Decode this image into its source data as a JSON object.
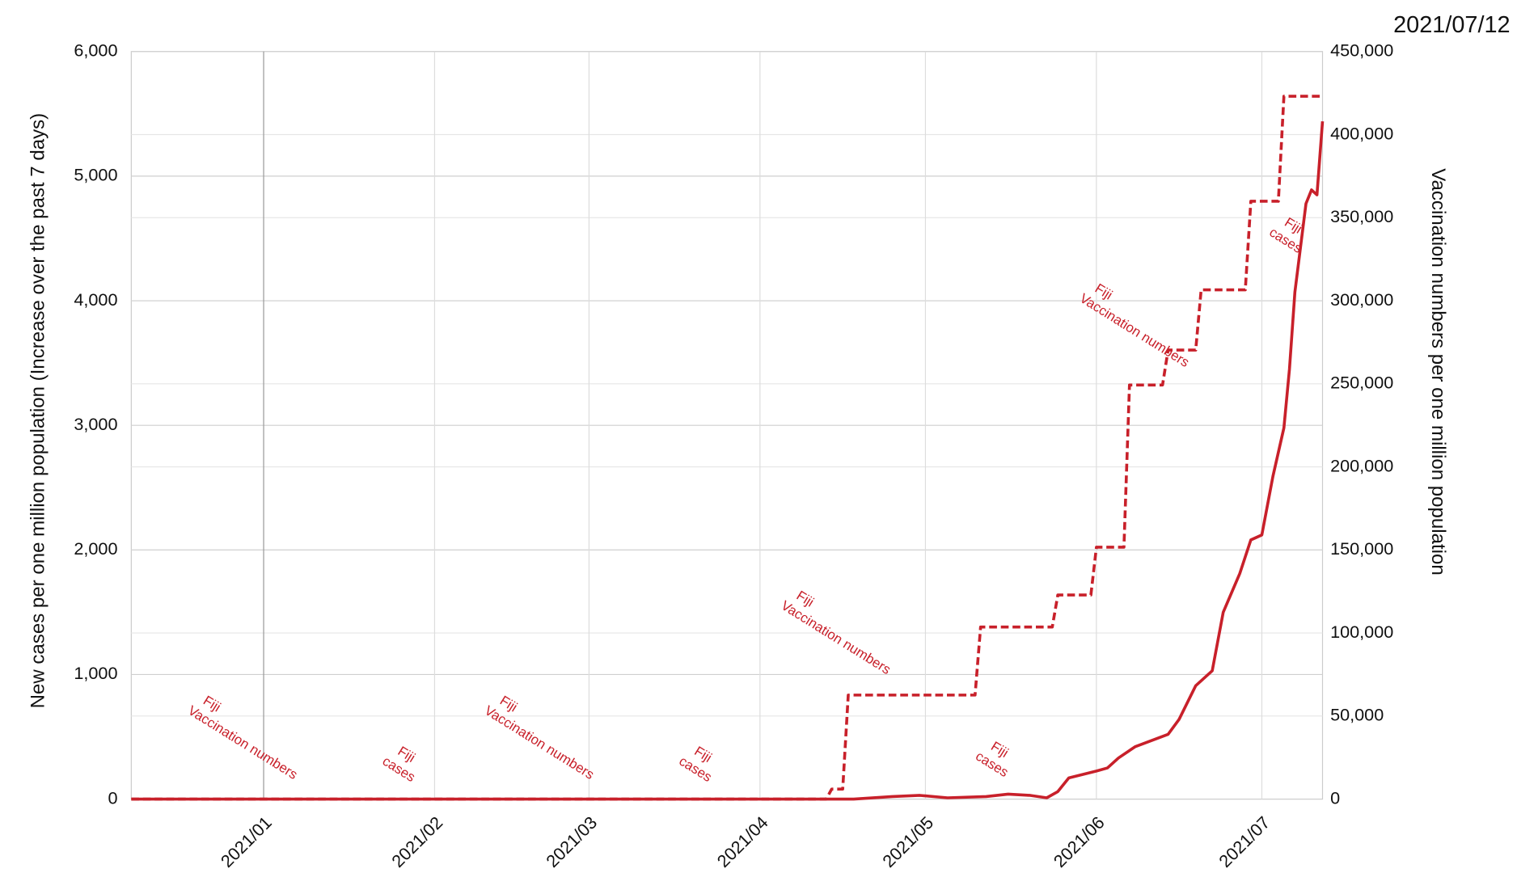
{
  "chart_data": {
    "type": "line",
    "date_label": "2021/07/12",
    "y_label": "New cases per one million population (Increase over the past 7 days)",
    "y2_label": "Vaccination numbers per one million population",
    "xlim": [
      "2020/12/08",
      "2021/07/12"
    ],
    "xticks": [
      {
        "value": "2021/01/01",
        "label": "2021/01"
      },
      {
        "value": "2021/02/01",
        "label": "2021/02"
      },
      {
        "value": "2021/03/01",
        "label": "2021/03"
      },
      {
        "value": "2021/04/01",
        "label": "2021/04"
      },
      {
        "value": "2021/05/01",
        "label": "2021/05"
      },
      {
        "value": "2021/06/01",
        "label": "2021/06"
      },
      {
        "value": "2021/07/01",
        "label": "2021/07"
      }
    ],
    "ylim": [
      0,
      6000
    ],
    "yticks": [
      0,
      {
        "value": 1000,
        "label": "1,000"
      },
      {
        "value": 2000,
        "label": "2,000"
      },
      {
        "value": 3000,
        "label": "3,000"
      },
      {
        "value": 4000,
        "label": "4,000"
      },
      {
        "value": 5000,
        "label": "5,000"
      },
      {
        "value": 6000,
        "label": "6,000"
      }
    ],
    "y2lim": [
      0,
      450000
    ],
    "y2ticks": [
      0,
      {
        "value": 50000,
        "label": "50,000"
      },
      {
        "value": 100000,
        "label": "100,000"
      },
      {
        "value": 150000,
        "label": "150,000"
      },
      {
        "value": 200000,
        "label": "200,000"
      },
      {
        "value": 250000,
        "label": "250,000"
      },
      {
        "value": 300000,
        "label": "300,000"
      },
      {
        "value": 350000,
        "label": "350,000"
      },
      {
        "value": 400000,
        "label": "400,000"
      },
      {
        "value": 450000,
        "label": "450,000"
      }
    ],
    "grid": true,
    "series": [
      {
        "name": "Fiji",
        "label": "cases",
        "color": "#c8202a",
        "dash": false,
        "x": [
          "2020/12/08",
          "2021/01/01",
          "2021/02/01",
          "2021/03/01",
          "2021/04/01",
          "2021/04/18",
          "2021/04/25",
          "2021/04/30",
          "2021/05/05",
          "2021/05/12",
          "2021/05/16",
          "2021/05/20",
          "2021/05/23",
          "2021/05/25",
          "2021/05/27",
          "2021/06/01",
          "2021/06/03",
          "2021/06/05",
          "2021/06/08",
          "2021/06/14",
          "2021/06/16",
          "2021/06/19",
          "2021/06/22",
          "2021/06/24",
          "2021/06/27",
          "2021/06/29",
          "2021/07/01",
          "2021/07/03",
          "2021/07/05",
          "2021/07/06",
          "2021/07/07",
          "2021/07/09",
          "2021/07/10",
          "2021/07/11",
          "2021/07/12"
        ],
        "values": [
          0,
          0,
          0,
          0,
          0,
          0,
          20,
          30,
          10,
          20,
          40,
          30,
          10,
          60,
          170,
          225,
          250,
          330,
          420,
          520,
          640,
          910,
          1030,
          1500,
          1810,
          2080,
          2120,
          2590,
          2980,
          3450,
          4070,
          4780,
          4890,
          4850,
          5440
        ]
      },
      {
        "name": "Fiji",
        "label": "Vaccination numbers",
        "color": "#c8202a",
        "dash": true,
        "axis": "y2",
        "x": [
          "2020/12/08",
          "2021/04/13",
          "2021/04/14",
          "2021/04/16",
          "2021/04/17",
          "2021/05/10",
          "2021/05/11",
          "2021/05/24",
          "2021/05/25",
          "2021/05/31",
          "2021/06/01",
          "2021/06/06",
          "2021/06/07",
          "2021/06/13",
          "2021/06/14",
          "2021/06/19",
          "2021/06/20",
          "2021/06/28",
          "2021/06/29",
          "2021/07/04",
          "2021/07/05",
          "2021/07/12"
        ],
        "values": [
          0,
          0,
          6000,
          6000,
          62600,
          62600,
          103600,
          103600,
          122900,
          122900,
          151600,
          151600,
          249300,
          249300,
          270300,
          270300,
          306600,
          306600,
          359900,
          359900,
          423100,
          423100
        ]
      }
    ]
  }
}
